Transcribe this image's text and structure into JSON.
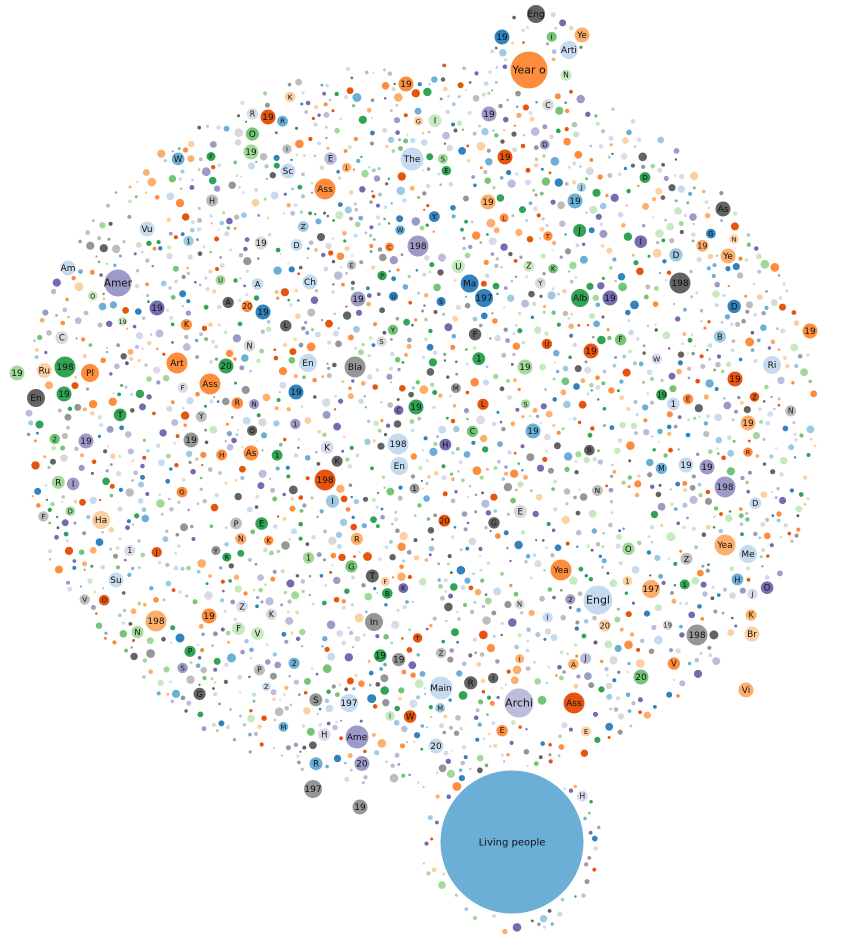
{
  "chart_data": {
    "type": "bubble",
    "bubbles": [
      {
        "label": "Living people",
        "size": 100,
        "color": "#6baed6"
      },
      {
        "label": "Year o",
        "size": 14,
        "color": "#fd8d3c"
      },
      {
        "label": "Archi",
        "size": 11,
        "color": "#bcbddc"
      },
      {
        "label": "Engl",
        "size": 11,
        "color": "#c6dbef"
      },
      {
        "label": "Amer",
        "size": 10,
        "color": "#9e9ac8"
      },
      {
        "label": "Ame",
        "size": 9,
        "color": "#9e9ac8"
      },
      {
        "label": "The",
        "size": 9,
        "color": "#c6dbef"
      },
      {
        "label": "Main",
        "size": 9,
        "color": "#c6dbef"
      },
      {
        "label": "Bla",
        "size": 8,
        "color": "#969696"
      },
      {
        "label": "Ass",
        "size": 8,
        "color": "#fd8d3c"
      },
      {
        "label": "Art",
        "size": 8,
        "color": "#fd8d3c"
      },
      {
        "label": "Ass",
        "size": 8,
        "color": "#fd8d3c"
      },
      {
        "label": "Yea",
        "size": 8,
        "color": "#fd8d3c"
      },
      {
        "label": "Yea",
        "size": 8,
        "color": "#fdae6b"
      },
      {
        "label": "Ass",
        "size": 8,
        "color": "#e6550d"
      },
      {
        "label": "198",
        "size": 8,
        "color": "#c6dbef"
      },
      {
        "label": "198",
        "size": 8,
        "color": "#e6550d"
      },
      {
        "label": "198",
        "size": 8,
        "color": "#9e9ac8"
      },
      {
        "label": "198",
        "size": 8,
        "color": "#636363"
      },
      {
        "label": "198",
        "size": 8,
        "color": "#31a354"
      },
      {
        "label": "198",
        "size": 8,
        "color": "#969696"
      },
      {
        "label": "198",
        "size": 8,
        "color": "#fdae6b"
      },
      {
        "label": "198",
        "size": 8,
        "color": "#9e9ac8"
      },
      {
        "label": "197",
        "size": 7,
        "color": "#c6dbef"
      },
      {
        "label": "197",
        "size": 7,
        "color": "#969696"
      },
      {
        "label": "197",
        "size": 7,
        "color": "#fdae6b"
      },
      {
        "label": "197",
        "size": 7,
        "color": "#3182bd"
      },
      {
        "label": "Arti",
        "size": 7,
        "color": "#c6dbef"
      },
      {
        "label": "Eng",
        "size": 7,
        "color": "#636363"
      },
      {
        "label": "Alb",
        "size": 7,
        "color": "#31a354"
      },
      {
        "label": "Ma",
        "size": 7,
        "color": "#3182bd"
      },
      {
        "label": "In",
        "size": 7,
        "color": "#969696"
      },
      {
        "label": "En",
        "size": 7,
        "color": "#c6dbef"
      },
      {
        "label": "En",
        "size": 7,
        "color": "#c6dbef"
      },
      {
        "label": "En",
        "size": 7,
        "color": "#636363"
      },
      {
        "label": "Me",
        "size": 7,
        "color": "#c6dbef"
      },
      {
        "label": "Ri",
        "size": 7,
        "color": "#c6dbef"
      },
      {
        "label": "Pl",
        "size": 7,
        "color": "#fd8d3c"
      },
      {
        "label": "Ha",
        "size": 7,
        "color": "#fdd0a2"
      },
      {
        "label": "Am",
        "size": 6,
        "color": "#c6dbef"
      },
      {
        "label": "Ru",
        "size": 6,
        "color": "#fdd0a2"
      },
      {
        "label": "Vi",
        "size": 6,
        "color": "#fdae6b"
      },
      {
        "label": "Ch",
        "size": 6,
        "color": "#c6dbef"
      },
      {
        "label": "Sc",
        "size": 6,
        "color": "#c6dbef"
      },
      {
        "label": "Vu",
        "size": 6,
        "color": "#c6dbef"
      },
      {
        "label": "Su",
        "size": 6,
        "color": "#c6dbef"
      },
      {
        "label": "As",
        "size": 6,
        "color": "#fd8d3c"
      },
      {
        "label": "As",
        "size": 6,
        "color": "#636363"
      },
      {
        "label": "Br",
        "size": 6,
        "color": "#fdd0a2"
      },
      {
        "label": "Ye",
        "size": 6,
        "color": "#fdae6b"
      },
      {
        "label": "Ye",
        "size": 6,
        "color": "#fdae6b"
      },
      {
        "label": "20",
        "size": 6,
        "color": "#31a354"
      },
      {
        "label": "20",
        "size": 6,
        "color": "#9e9ac8"
      },
      {
        "label": "20",
        "size": 6,
        "color": "#c6dbef"
      },
      {
        "label": "20",
        "size": 6,
        "color": "#74c476"
      },
      {
        "label": "19",
        "size": 6,
        "color": "#e6550d"
      },
      {
        "label": "19",
        "size": 6,
        "color": "#fd8d3c"
      },
      {
        "label": "19",
        "size": 6,
        "color": "#a1d99b"
      },
      {
        "label": "19",
        "size": 6,
        "color": "#9e9ac8"
      },
      {
        "label": "19",
        "size": 6,
        "color": "#3182bd"
      },
      {
        "label": "19",
        "size": 6,
        "color": "#756bb1"
      },
      {
        "label": "19",
        "size": 6,
        "color": "#31a354"
      },
      {
        "label": "19",
        "size": 6,
        "color": "#6baed6"
      },
      {
        "label": "19",
        "size": 6,
        "color": "#969696"
      },
      {
        "label": "19",
        "size": 6,
        "color": "#fdae6b"
      },
      {
        "label": "19",
        "size": 6,
        "color": "#e6550d"
      },
      {
        "label": "19",
        "size": 6,
        "color": "#9e9ac8"
      },
      {
        "label": "19",
        "size": 6,
        "color": "#c6dbef"
      },
      {
        "label": "19",
        "size": 6,
        "color": "#fd8d3c"
      },
      {
        "label": "19",
        "size": 6,
        "color": "#a1d99b"
      },
      {
        "label": "19",
        "size": 6,
        "color": "#3182bd"
      },
      {
        "label": "19",
        "size": 6,
        "color": "#756bb1"
      },
      {
        "label": "19",
        "size": 6,
        "color": "#e6550d"
      },
      {
        "label": "19",
        "size": 6,
        "color": "#6baed6"
      },
      {
        "label": "19",
        "size": 6,
        "color": "#31a354"
      },
      {
        "label": "19",
        "size": 6,
        "color": "#9e9ac8"
      },
      {
        "label": "19",
        "size": 6,
        "color": "#fd8d3c"
      },
      {
        "label": "19",
        "size": 6,
        "color": "#e6550d"
      },
      {
        "label": "19",
        "size": 6,
        "color": "#9e9ac8"
      },
      {
        "label": "19",
        "size": 6,
        "color": "#a1d99b"
      },
      {
        "label": "19",
        "size": 6,
        "color": "#3182bd"
      },
      {
        "label": "19",
        "size": 6,
        "color": "#969696"
      },
      {
        "label": "19",
        "size": 6,
        "color": "#fdae6b"
      }
    ],
    "small_labels": [
      "A",
      "1",
      "2",
      "B",
      "C",
      "M",
      "S",
      "P",
      "E",
      "D",
      "R",
      "L",
      "W",
      "G",
      "H",
      "N",
      "O",
      "F",
      "K",
      "U",
      "V",
      "T",
      "I",
      "J",
      "Y",
      "Z",
      "19",
      "20"
    ],
    "palette": [
      "#3182bd",
      "#6baed6",
      "#9ecae1",
      "#c6dbef",
      "#e6550d",
      "#fd8d3c",
      "#fdae6b",
      "#fdd0a2",
      "#31a354",
      "#74c476",
      "#a1d99b",
      "#c7e9c0",
      "#756bb1",
      "#9e9ac8",
      "#bcbddc",
      "#dadaeb",
      "#636363",
      "#969696",
      "#bdbdbd",
      "#d9d9d9"
    ],
    "filler_bubble_count": 2600
  }
}
